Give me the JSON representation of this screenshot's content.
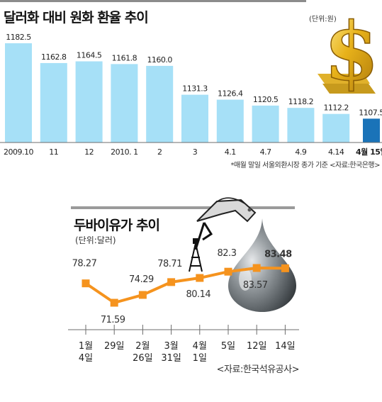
{
  "exchange": {
    "title": "달러화 대비 원화 환율 추이",
    "unit": "(단위:원)",
    "note": "*매월 말일 서울외환시장 종가 기준 <자료:한국은행>",
    "chart_data": {
      "type": "bar",
      "categories": [
        "2009.10",
        "11",
        "12",
        "2010. 1",
        "2",
        "3",
        "4.1",
        "4.7",
        "4.9",
        "4.14",
        "4월 15일"
      ],
      "value_labels": [
        "1182.5",
        "1162.8",
        "1164.5",
        "1161.8",
        "1160.0",
        "1131.3",
        "1126.4",
        "1120.5",
        "1118.2",
        "1112.2",
        "1107.5"
      ],
      "values": [
        1182.5,
        1162.8,
        1164.5,
        1161.8,
        1160.0,
        1131.3,
        1126.4,
        1120.5,
        1118.2,
        1112.2,
        1107.5
      ],
      "highlight_index": 10,
      "colors": {
        "bar": "#a6e0f7",
        "highlight": "#1a73b8"
      }
    }
  },
  "oil": {
    "title": "두바이유가 추이",
    "unit": "(단위:달러)",
    "note": "<자료:한국석유공사>",
    "chart_data": {
      "type": "line",
      "categories": [
        [
          "1월",
          "4일"
        ],
        [
          "29일"
        ],
        [
          "2월",
          "26일"
        ],
        [
          "3월",
          "31일"
        ],
        [
          "4월",
          "1일"
        ],
        [
          "5일"
        ],
        [
          "12일"
        ],
        [
          "14일"
        ]
      ],
      "value_labels": [
        "78.27",
        "71.59",
        "74.29",
        "78.71",
        "80.14",
        "82.3",
        "83.57",
        "83.48"
      ],
      "values": [
        78.27,
        71.59,
        74.29,
        78.71,
        80.14,
        82.3,
        83.57,
        83.48
      ],
      "highlight_index": 7,
      "colors": {
        "line": "#f5931e",
        "highlight_label": "#e5262b"
      }
    }
  }
}
